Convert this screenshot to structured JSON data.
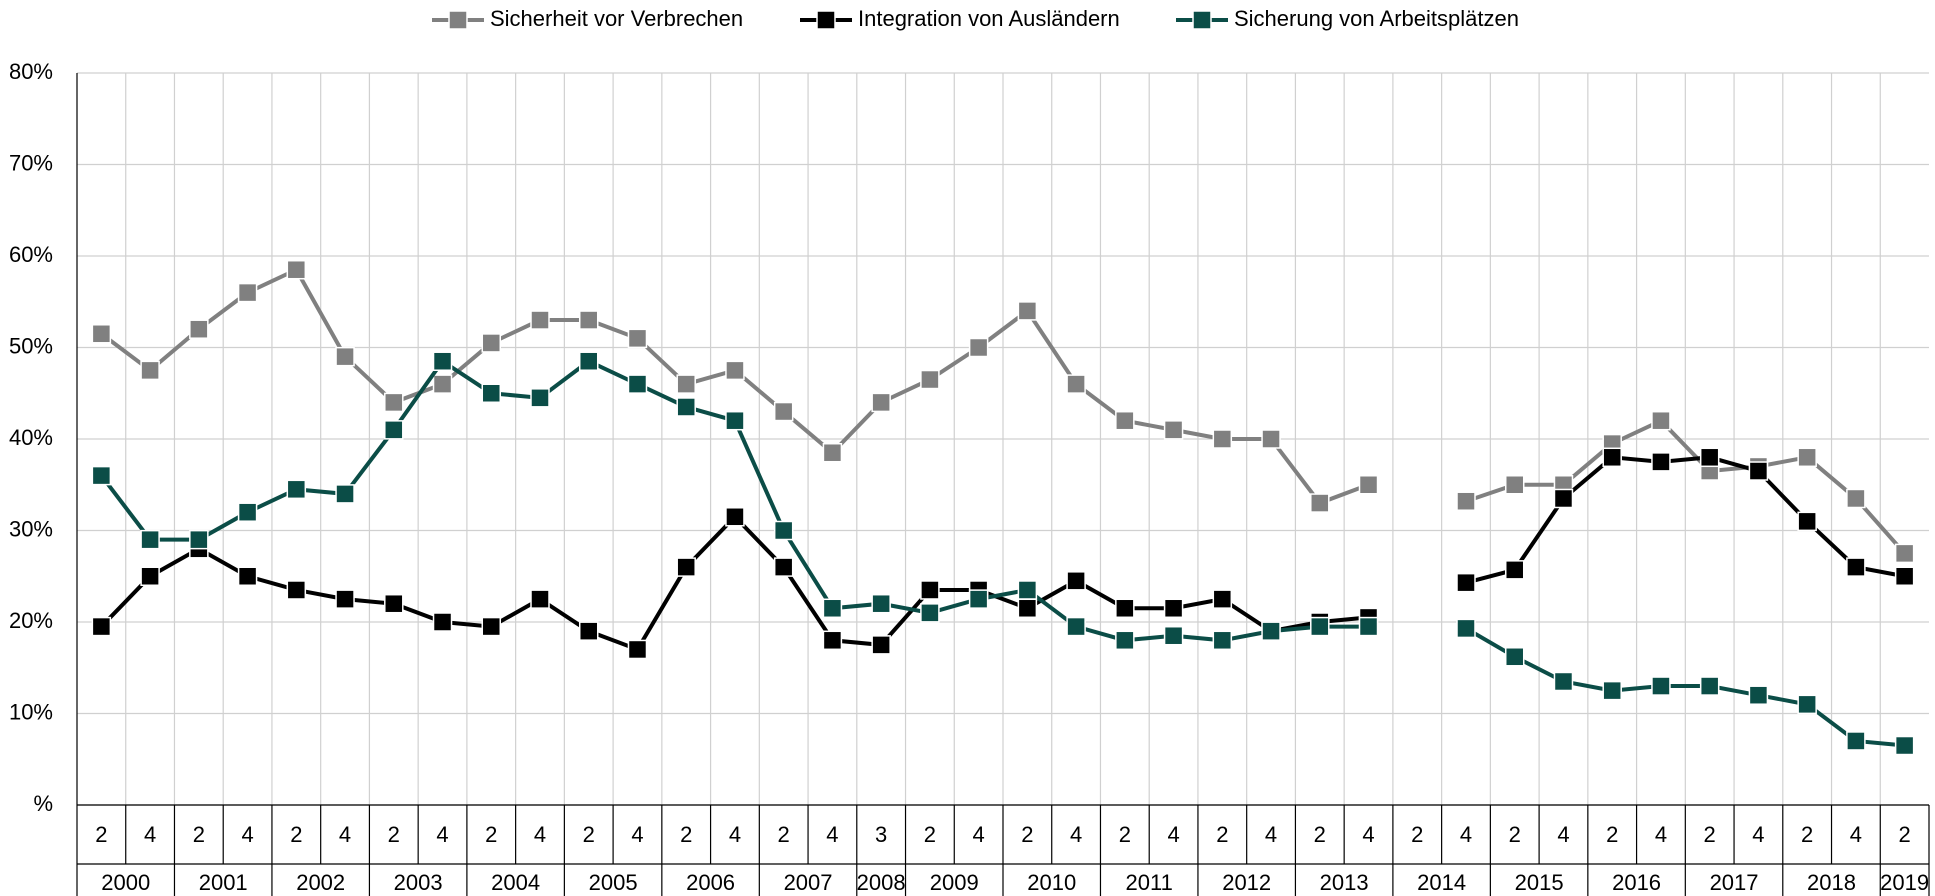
{
  "chart_data": {
    "type": "line",
    "categories": [
      "2",
      "4",
      "2",
      "4",
      "2",
      "4",
      "2",
      "4",
      "2",
      "4",
      "2",
      "4",
      "2",
      "4",
      "2",
      "4",
      "3",
      "2",
      "4",
      "2",
      "4",
      "2",
      "4",
      "2",
      "4",
      "2",
      "4",
      "2",
      "4",
      "2",
      "4",
      "2",
      "4",
      "2",
      "4",
      "2",
      "4",
      "2"
    ],
    "years": [
      "2000",
      null,
      "2001",
      null,
      "2002",
      null,
      "2003",
      null,
      "2004",
      null,
      "2005",
      null,
      "2006",
      null,
      "2007",
      null,
      "2008",
      "2009",
      null,
      "2010",
      null,
      "2011",
      null,
      "2012",
      null,
      "2013",
      null,
      "2014",
      null,
      "2015",
      null,
      "2016",
      null,
      "2017",
      null,
      "2018",
      null,
      "2019"
    ],
    "series": [
      {
        "name": "Sicherheit vor Verbrechen",
        "color": "#808080",
        "values": [
          51.5,
          47.5,
          52,
          56,
          58.5,
          49,
          44,
          46,
          50.5,
          53,
          53,
          51,
          46,
          47.5,
          43,
          38.5,
          44,
          46.5,
          50,
          54,
          46,
          42,
          41,
          40,
          40,
          33,
          35,
          null,
          33.2,
          35,
          35,
          39.5,
          42,
          36.5,
          37,
          38,
          33.5,
          27.5
        ]
      },
      {
        "name": "Integration von Ausländern",
        "color": "#000000",
        "values": [
          19.5,
          25,
          28,
          25,
          23.5,
          22.5,
          22,
          20,
          19.5,
          22.5,
          19,
          17,
          26,
          31.5,
          26,
          18,
          17.5,
          23.5,
          23.5,
          21.5,
          24.5,
          21.5,
          21.5,
          22.5,
          19,
          20,
          20.5,
          null,
          24.3,
          25.7,
          33.5,
          38,
          37.5,
          38,
          36.5,
          31,
          26,
          25
        ]
      },
      {
        "name": "Sicherung von Arbeitsplätzen",
        "color": "#0b4d47",
        "values": [
          36,
          29,
          29,
          32,
          34.5,
          34,
          41,
          48.5,
          45,
          44.5,
          48.5,
          46,
          43.5,
          42,
          30,
          21.5,
          22,
          21,
          22.5,
          23.5,
          19.5,
          18,
          18.5,
          18,
          19,
          19.5,
          19.5,
          null,
          19.3,
          16.2,
          13.5,
          12.5,
          13,
          13,
          12,
          11,
          7,
          6.5
        ]
      }
    ],
    "ylim": [
      0,
      80
    ],
    "yticks": [
      {
        "value": 0,
        "label": "%"
      },
      {
        "value": 10,
        "label": "10%"
      },
      {
        "value": 20,
        "label": "20%"
      },
      {
        "value": 30,
        "label": "30%"
      },
      {
        "value": 40,
        "label": "40%"
      },
      {
        "value": 50,
        "label": "50%"
      },
      {
        "value": 60,
        "label": "60%"
      },
      {
        "value": 70,
        "label": "70%"
      },
      {
        "value": 80,
        "label": "80%"
      }
    ],
    "grid": true,
    "legend": "top"
  }
}
